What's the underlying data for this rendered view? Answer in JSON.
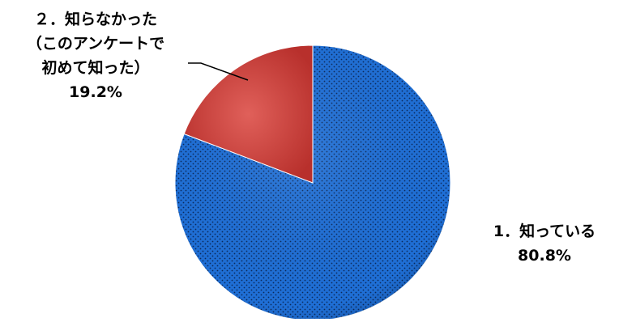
{
  "chart_data": {
    "type": "pie",
    "start_angle_deg": 0,
    "direction": "clockwise",
    "legend": "none",
    "label_placement": "outside",
    "slices": [
      {
        "index": 0,
        "label_lines": [
          "1．知っている"
        ],
        "value_text": "80.8%",
        "value": 80.8,
        "color": "#1f6fd6",
        "pattern": "dots"
      },
      {
        "index": 1,
        "label_lines": [
          "２．知らなかった",
          "（このアンケートで",
          "初めて知った）"
        ],
        "value_text": "19.2%",
        "value": 19.2,
        "color": "#d2403c",
        "pattern": "none"
      }
    ]
  }
}
